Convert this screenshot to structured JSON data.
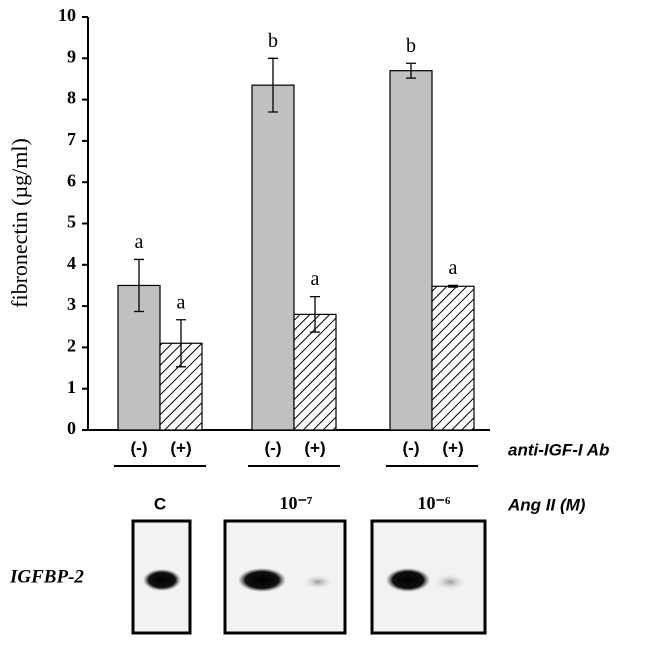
{
  "chart_data": {
    "type": "bar",
    "y_label": "fibronectin (µg/ml)",
    "categories": [
      "C",
      "10⁻⁷",
      "10⁻⁶"
    ],
    "category_label": "Ang II (M)",
    "series_label": "anti-IGF-I Ab",
    "series": [
      {
        "name": "(-)",
        "color": "#c0c0c0",
        "hatch": false,
        "values": [
          3.5,
          8.35,
          8.7
        ],
        "errors": [
          0.63,
          0.65,
          0.18
        ],
        "letters": [
          "a",
          "b",
          "b"
        ]
      },
      {
        "name": "(+)",
        "color": "#000000",
        "hatch": true,
        "values": [
          2.1,
          2.8,
          3.48
        ],
        "errors": [
          0.57,
          0.43,
          0.02
        ],
        "letters": [
          "a",
          "a",
          "a"
        ]
      }
    ],
    "ylim": [
      0,
      10
    ],
    "yticks": [
      0,
      1,
      2,
      3,
      4,
      5,
      6,
      7,
      8,
      9,
      10
    ]
  },
  "blot": {
    "label": "IGFBP-2"
  }
}
